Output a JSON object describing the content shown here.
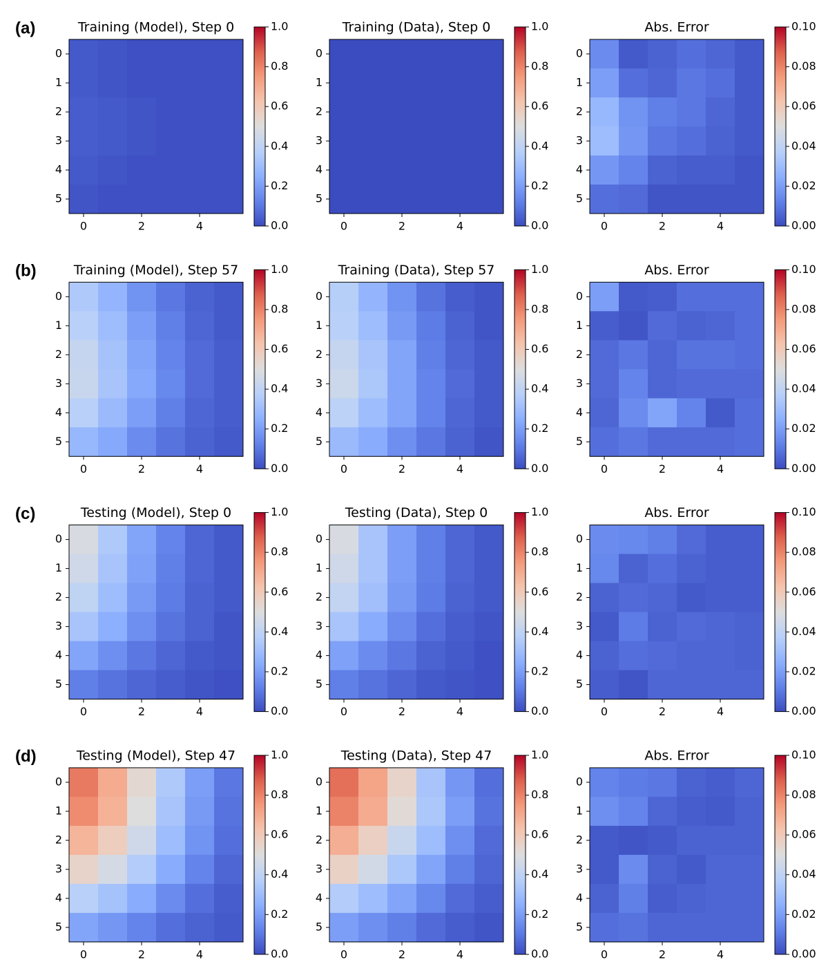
{
  "panel_labels": [
    "(a)",
    "(b)",
    "(c)",
    "(d)"
  ],
  "chart_data": [
    {
      "type": "heatmap",
      "title": "Training (Model), Step 0",
      "colormap": "coolwarm",
      "xlim": [
        -0.5,
        5.5
      ],
      "ylim": [
        5.5,
        -0.5
      ],
      "xticks": [
        0,
        2,
        4
      ],
      "yticks": [
        0,
        1,
        2,
        3,
        4,
        5
      ],
      "clim": [
        0,
        1
      ],
      "cticks": [
        {
          "value": 0,
          "label": "0.0"
        },
        0.2,
        0.4,
        0.6,
        0.8,
        {
          "value": 1,
          "label": "1.0"
        }
      ],
      "values": [
        [
          0.03,
          0.02,
          0.01,
          0.01,
          0.01,
          0.01
        ],
        [
          0.03,
          0.02,
          0.01,
          0.01,
          0.01,
          0.01
        ],
        [
          0.04,
          0.03,
          0.02,
          0.01,
          0.01,
          0.01
        ],
        [
          0.04,
          0.03,
          0.02,
          0.01,
          0.01,
          0.01
        ],
        [
          0.03,
          0.02,
          0.01,
          0.01,
          0.01,
          0.01
        ],
        [
          0.02,
          0.01,
          0.01,
          0.01,
          0.01,
          0.01
        ]
      ]
    },
    {
      "type": "heatmap",
      "title": "Training (Data), Step 0",
      "colormap": "coolwarm",
      "xlim": [
        -0.5,
        5.5
      ],
      "ylim": [
        5.5,
        -0.5
      ],
      "xticks": [
        0,
        2,
        4
      ],
      "yticks": [
        0,
        1,
        2,
        3,
        4,
        5
      ],
      "clim": [
        0,
        1
      ],
      "cticks": [
        {
          "value": 0,
          "label": "0.0"
        },
        0.2,
        0.4,
        0.6,
        0.8,
        {
          "value": 1,
          "label": "1.0"
        }
      ],
      "values": [
        [
          0,
          0,
          0,
          0,
          0,
          0
        ],
        [
          0,
          0,
          0,
          0,
          0,
          0
        ],
        [
          0,
          0,
          0,
          0,
          0,
          0
        ],
        [
          0,
          0,
          0,
          0,
          0,
          0
        ],
        [
          0,
          0,
          0,
          0,
          0,
          0
        ],
        [
          0,
          0,
          0,
          0,
          0,
          0
        ]
      ]
    },
    {
      "type": "heatmap",
      "title": "Abs. Error",
      "colormap": "coolwarm",
      "xlim": [
        -0.5,
        5.5
      ],
      "ylim": [
        5.5,
        -0.5
      ],
      "xticks": [
        0,
        2,
        4
      ],
      "yticks": [
        0,
        1,
        2,
        3,
        4,
        5
      ],
      "clim": [
        0,
        0.1
      ],
      "cticks": [
        {
          "value": 0,
          "label": "0.00"
        },
        {
          "value": 0.02,
          "label": "0.02"
        },
        {
          "value": 0.04,
          "label": "0.04"
        },
        {
          "value": 0.06,
          "label": "0.06"
        },
        {
          "value": 0.08,
          "label": "0.08"
        },
        {
          "value": 0.1,
          "label": "0.10"
        }
      ],
      "values": [
        [
          0.015,
          0.003,
          0.005,
          0.008,
          0.006,
          0.003
        ],
        [
          0.02,
          0.008,
          0.006,
          0.01,
          0.008,
          0.003
        ],
        [
          0.028,
          0.017,
          0.012,
          0.01,
          0.006,
          0.003
        ],
        [
          0.03,
          0.018,
          0.01,
          0.008,
          0.005,
          0.003
        ],
        [
          0.018,
          0.013,
          0.005,
          0.004,
          0.004,
          0.002
        ],
        [
          0.008,
          0.007,
          0.002,
          0.002,
          0.002,
          0.002
        ]
      ]
    },
    {
      "type": "heatmap",
      "title": "Training (Model), Step 57",
      "colormap": "coolwarm",
      "xlim": [
        -0.5,
        5.5
      ],
      "ylim": [
        5.5,
        -0.5
      ],
      "xticks": [
        0,
        2,
        4
      ],
      "yticks": [
        0,
        1,
        2,
        3,
        4,
        5
      ],
      "clim": [
        0,
        1
      ],
      "cticks": [
        {
          "value": 0,
          "label": "0.0"
        },
        0.2,
        0.4,
        0.6,
        0.8,
        {
          "value": 1,
          "label": "1.0"
        }
      ],
      "values": [
        [
          0.35,
          0.27,
          0.17,
          0.1,
          0.05,
          0.03
        ],
        [
          0.38,
          0.3,
          0.2,
          0.12,
          0.06,
          0.03
        ],
        [
          0.42,
          0.32,
          0.22,
          0.13,
          0.07,
          0.04
        ],
        [
          0.43,
          0.33,
          0.23,
          0.14,
          0.07,
          0.04
        ],
        [
          0.38,
          0.29,
          0.2,
          0.12,
          0.06,
          0.04
        ],
        [
          0.28,
          0.23,
          0.15,
          0.09,
          0.05,
          0.03
        ]
      ]
    },
    {
      "type": "heatmap",
      "title": "Training (Data), Step 57",
      "colormap": "coolwarm",
      "xlim": [
        -0.5,
        5.5
      ],
      "ylim": [
        5.5,
        -0.5
      ],
      "xticks": [
        0,
        2,
        4
      ],
      "yticks": [
        0,
        1,
        2,
        3,
        4,
        5
      ],
      "clim": [
        0,
        1
      ],
      "cticks": [
        {
          "value": 0,
          "label": "0.0"
        },
        0.2,
        0.4,
        0.6,
        0.8,
        {
          "value": 1,
          "label": "1.0"
        }
      ],
      "values": [
        [
          0.37,
          0.27,
          0.17,
          0.09,
          0.04,
          0.02
        ],
        [
          0.38,
          0.3,
          0.19,
          0.11,
          0.05,
          0.02
        ],
        [
          0.42,
          0.33,
          0.22,
          0.12,
          0.06,
          0.03
        ],
        [
          0.44,
          0.34,
          0.22,
          0.13,
          0.07,
          0.03
        ],
        [
          0.39,
          0.3,
          0.22,
          0.13,
          0.06,
          0.03
        ],
        [
          0.29,
          0.24,
          0.16,
          0.1,
          0.05,
          0.02
        ]
      ]
    },
    {
      "type": "heatmap",
      "title": "Abs. Error",
      "colormap": "coolwarm",
      "xlim": [
        -0.5,
        5.5
      ],
      "ylim": [
        5.5,
        -0.5
      ],
      "xticks": [
        0,
        2,
        4
      ],
      "yticks": [
        0,
        1,
        2,
        3,
        4,
        5
      ],
      "clim": [
        0,
        0.1
      ],
      "cticks": [
        {
          "value": 0,
          "label": "0.00"
        },
        {
          "value": 0.02,
          "label": "0.02"
        },
        {
          "value": 0.04,
          "label": "0.04"
        },
        {
          "value": 0.06,
          "label": "0.06"
        },
        {
          "value": 0.08,
          "label": "0.08"
        },
        {
          "value": 0.1,
          "label": "0.10"
        }
      ],
      "values": [
        [
          0.02,
          0.003,
          0.004,
          0.008,
          0.008,
          0.008
        ],
        [
          0.004,
          0.002,
          0.007,
          0.005,
          0.006,
          0.008
        ],
        [
          0.007,
          0.01,
          0.006,
          0.009,
          0.009,
          0.008
        ],
        [
          0.007,
          0.013,
          0.006,
          0.007,
          0.007,
          0.007
        ],
        [
          0.006,
          0.015,
          0.022,
          0.013,
          0.003,
          0.008
        ],
        [
          0.008,
          0.01,
          0.007,
          0.007,
          0.007,
          0.008
        ]
      ]
    },
    {
      "type": "heatmap",
      "title": "Testing (Model), Step 0",
      "colormap": "coolwarm",
      "xlim": [
        -0.5,
        5.5
      ],
      "ylim": [
        5.5,
        -0.5
      ],
      "xticks": [
        0,
        2,
        4
      ],
      "yticks": [
        0,
        1,
        2,
        3,
        4,
        5
      ],
      "clim": [
        0,
        1
      ],
      "cticks": [
        {
          "value": 0,
          "label": "0.0"
        },
        0.2,
        0.4,
        0.6,
        0.8,
        {
          "value": 1,
          "label": "1.0"
        }
      ],
      "values": [
        [
          0.48,
          0.35,
          0.22,
          0.13,
          0.06,
          0.03
        ],
        [
          0.45,
          0.33,
          0.21,
          0.12,
          0.06,
          0.03
        ],
        [
          0.4,
          0.3,
          0.19,
          0.11,
          0.05,
          0.03
        ],
        [
          0.33,
          0.25,
          0.16,
          0.09,
          0.05,
          0.02
        ],
        [
          0.22,
          0.16,
          0.1,
          0.06,
          0.03,
          0.02
        ],
        [
          0.12,
          0.09,
          0.06,
          0.04,
          0.02,
          0.01
        ]
      ]
    },
    {
      "type": "heatmap",
      "title": "Testing (Data), Step 0",
      "colormap": "coolwarm",
      "xlim": [
        -0.5,
        5.5
      ],
      "ylim": [
        5.5,
        -0.5
      ],
      "xticks": [
        0,
        2,
        4
      ],
      "yticks": [
        0,
        1,
        2,
        3,
        4,
        5
      ],
      "clim": [
        0,
        1
      ],
      "cticks": [
        {
          "value": 0,
          "label": "0.0"
        },
        0.2,
        0.4,
        0.6,
        0.8,
        {
          "value": 1,
          "label": "1.0"
        }
      ],
      "values": [
        [
          0.48,
          0.33,
          0.2,
          0.12,
          0.06,
          0.03
        ],
        [
          0.45,
          0.33,
          0.2,
          0.12,
          0.06,
          0.03
        ],
        [
          0.41,
          0.31,
          0.19,
          0.11,
          0.05,
          0.03
        ],
        [
          0.33,
          0.24,
          0.15,
          0.08,
          0.04,
          0.02
        ],
        [
          0.21,
          0.15,
          0.1,
          0.05,
          0.03,
          0.01
        ],
        [
          0.12,
          0.09,
          0.06,
          0.03,
          0.02,
          0.01
        ]
      ]
    },
    {
      "type": "heatmap",
      "title": "Abs. Error",
      "colormap": "coolwarm",
      "xlim": [
        -0.5,
        5.5
      ],
      "ylim": [
        5.5,
        -0.5
      ],
      "xticks": [
        0,
        2,
        4
      ],
      "yticks": [
        0,
        1,
        2,
        3,
        4,
        5
      ],
      "clim": [
        0,
        0.1
      ],
      "cticks": [
        {
          "value": 0,
          "label": "0.00"
        },
        {
          "value": 0.02,
          "label": "0.02"
        },
        {
          "value": 0.04,
          "label": "0.04"
        },
        {
          "value": 0.06,
          "label": "0.06"
        },
        {
          "value": 0.08,
          "label": "0.08"
        },
        {
          "value": 0.1,
          "label": "0.10"
        }
      ],
      "values": [
        [
          0.015,
          0.014,
          0.012,
          0.007,
          0.004,
          0.004
        ],
        [
          0.014,
          0.005,
          0.008,
          0.005,
          0.004,
          0.004
        ],
        [
          0.005,
          0.007,
          0.006,
          0.003,
          0.004,
          0.004
        ],
        [
          0.003,
          0.011,
          0.005,
          0.007,
          0.006,
          0.005
        ],
        [
          0.005,
          0.008,
          0.007,
          0.006,
          0.006,
          0.005
        ],
        [
          0.004,
          0.002,
          0.006,
          0.006,
          0.006,
          0.006
        ]
      ]
    },
    {
      "type": "heatmap",
      "title": "Testing (Model), Step 47",
      "colormap": "coolwarm",
      "xlim": [
        -0.5,
        5.5
      ],
      "ylim": [
        5.5,
        -0.5
      ],
      "xticks": [
        0,
        2,
        4
      ],
      "yticks": [
        0,
        1,
        2,
        3,
        4,
        5
      ],
      "clim": [
        0,
        1
      ],
      "cticks": [
        {
          "value": 0,
          "label": "0.0"
        },
        0.2,
        0.4,
        0.6,
        0.8,
        {
          "value": 1,
          "label": "1.0"
        }
      ],
      "values": [
        [
          0.82,
          0.7,
          0.53,
          0.35,
          0.2,
          0.1
        ],
        [
          0.78,
          0.68,
          0.5,
          0.33,
          0.19,
          0.09
        ],
        [
          0.67,
          0.58,
          0.45,
          0.3,
          0.17,
          0.08
        ],
        [
          0.55,
          0.47,
          0.36,
          0.24,
          0.13,
          0.06
        ],
        [
          0.38,
          0.32,
          0.24,
          0.15,
          0.08,
          0.04
        ],
        [
          0.22,
          0.18,
          0.13,
          0.08,
          0.05,
          0.03
        ]
      ]
    },
    {
      "type": "heatmap",
      "title": "Testing (Data), Step 47",
      "colormap": "coolwarm",
      "xlim": [
        -0.5,
        5.5
      ],
      "ylim": [
        5.5,
        -0.5
      ],
      "xticks": [
        0,
        2,
        4
      ],
      "yticks": [
        0,
        1,
        2,
        3,
        4,
        5
      ],
      "clim": [
        0,
        1
      ],
      "cticks": [
        {
          "value": 0,
          "label": "0.0"
        },
        0.2,
        0.4,
        0.6,
        0.8,
        {
          "value": 1,
          "label": "1.0"
        }
      ],
      "values": [
        [
          0.84,
          0.72,
          0.55,
          0.33,
          0.18,
          0.08
        ],
        [
          0.8,
          0.7,
          0.52,
          0.34,
          0.2,
          0.09
        ],
        [
          0.69,
          0.57,
          0.43,
          0.3,
          0.16,
          0.07
        ],
        [
          0.56,
          0.46,
          0.34,
          0.22,
          0.12,
          0.06
        ],
        [
          0.36,
          0.3,
          0.22,
          0.14,
          0.07,
          0.04
        ],
        [
          0.2,
          0.16,
          0.12,
          0.07,
          0.04,
          0.02
        ]
      ]
    },
    {
      "type": "heatmap",
      "title": "Abs. Error",
      "colormap": "coolwarm",
      "xlim": [
        -0.5,
        5.5
      ],
      "ylim": [
        5.5,
        -0.5
      ],
      "xticks": [
        0,
        2,
        4
      ],
      "yticks": [
        0,
        1,
        2,
        3,
        4,
        5
      ],
      "clim": [
        0,
        0.1
      ],
      "cticks": [
        {
          "value": 0,
          "label": "0.00"
        },
        {
          "value": 0.02,
          "label": "0.02"
        },
        {
          "value": 0.04,
          "label": "0.04"
        },
        {
          "value": 0.06,
          "label": "0.06"
        },
        {
          "value": 0.08,
          "label": "0.08"
        },
        {
          "value": 0.1,
          "label": "0.10"
        }
      ],
      "values": [
        [
          0.013,
          0.011,
          0.01,
          0.005,
          0.004,
          0.006
        ],
        [
          0.016,
          0.013,
          0.006,
          0.004,
          0.003,
          0.005
        ],
        [
          0.003,
          0.002,
          0.003,
          0.005,
          0.005,
          0.005
        ],
        [
          0.003,
          0.015,
          0.005,
          0.003,
          0.006,
          0.006
        ],
        [
          0.005,
          0.012,
          0.004,
          0.005,
          0.006,
          0.006
        ],
        [
          0.008,
          0.009,
          0.006,
          0.006,
          0.006,
          0.006
        ]
      ]
    }
  ]
}
